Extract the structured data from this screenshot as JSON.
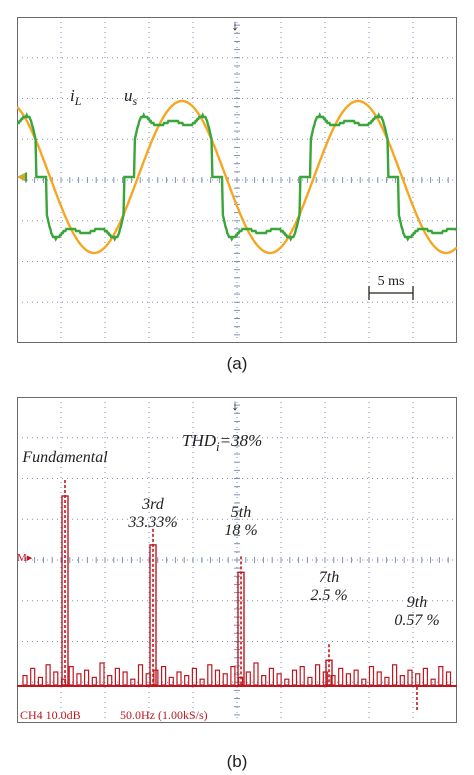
{
  "figure": {
    "caption_a": "(a)",
    "caption_b": "(b)"
  },
  "colors": {
    "grid": "#7f8fb8",
    "frame": "#6a6a6a",
    "us_wave": "#f5a623",
    "iL_wave": "#3aa53a",
    "spectrum": "#c0161e",
    "text": "#222222"
  },
  "chart_data": [
    {
      "type": "line",
      "title": "",
      "xlabel": "",
      "ylabel": "",
      "grid": true,
      "scale_bar_label": "5 ms",
      "scale_bar_ms": 5,
      "time_per_division_ms": 5,
      "signal_period_ms": 20,
      "x_range_ms": [
        0,
        50
      ],
      "trigger_marker": "↓",
      "ground_marker": "◄",
      "series": [
        {
          "name": "u",
          "subscript": "s",
          "color": "#f5a623",
          "waveform": "sinusoid",
          "relative_amplitude": 1.0,
          "phase_offset_ms": 0
        },
        {
          "name": "i",
          "subscript": "L",
          "color": "#3aa53a",
          "waveform": "distorted sinusoid with flat zero-crossing dead zones",
          "relative_amplitude": 0.95,
          "phase_offset_ms": -1,
          "harmonic_content_percent": {
            "1": 100,
            "3": 33.33,
            "5": 18,
            "7": 2.5,
            "9": 0.57
          }
        }
      ]
    },
    {
      "type": "bar",
      "title": "",
      "xlabel": "",
      "ylabel": "",
      "grid": true,
      "thd_label": "THD",
      "thd_subscript": "i",
      "thd_value": "=38%",
      "status_left": "CH4 10.0dB",
      "status_right": "50.0Hz (1.00kS/s)",
      "marker_label": "M▸",
      "categories": [
        "Fundamental",
        "3rd",
        "5th",
        "7th",
        "9th"
      ],
      "value_labels": [
        "",
        "33.33%",
        "18 %",
        "2.5 %",
        "0.57 %"
      ],
      "harmonic_order": [
        1,
        3,
        5,
        7,
        9
      ],
      "values_percent": [
        100,
        33.33,
        18,
        2.5,
        0.57
      ]
    }
  ]
}
